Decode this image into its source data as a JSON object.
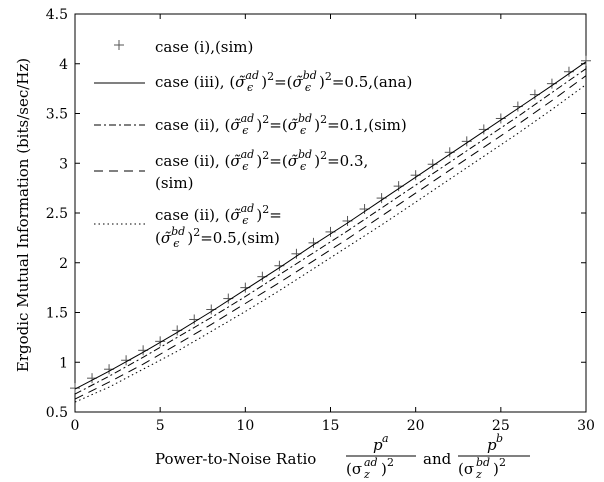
{
  "chart_data": {
    "type": "line",
    "title": "",
    "xlabel": "Power-to-Noise Ratio",
    "xlabel_frac1": {
      "num": "p",
      "num_sup": "a",
      "den": "(σ",
      "den_sub": "z",
      "den_sup": "ad",
      "den_close": ")",
      "den_pow": "2"
    },
    "xlabel_and": "and",
    "xlabel_frac2": {
      "num": "p",
      "num_sup": "b",
      "den": "(σ",
      "den_sub": "z",
      "den_sup": "bd",
      "den_close": ")",
      "den_pow": "2"
    },
    "ylabel": "Ergodic Mutual Information (bits/sec/Hz)",
    "xlim": [
      0,
      30
    ],
    "ylim": [
      0.5,
      4.5
    ],
    "x_ticks": [
      "0",
      "5",
      "10",
      "15",
      "20",
      "25",
      "30"
    ],
    "y_ticks": [
      "0.5",
      "1",
      "1.5",
      "2",
      "2.5",
      "3",
      "3.5",
      "4",
      "4.5"
    ],
    "grid": false,
    "legend_position": "top-left",
    "series": [
      {
        "name": "case (i),(sim)",
        "style": "plus",
        "x": [
          0,
          1,
          2,
          3,
          4,
          5,
          6,
          7,
          8,
          9,
          10,
          11,
          12,
          13,
          14,
          15,
          16,
          17,
          18,
          19,
          20,
          21,
          22,
          23,
          24,
          25,
          26,
          27,
          28,
          29,
          30
        ],
        "values": [
          0.74,
          0.84,
          0.93,
          1.02,
          1.12,
          1.21,
          1.32,
          1.43,
          1.53,
          1.64,
          1.75,
          1.86,
          1.97,
          2.09,
          2.2,
          2.31,
          2.42,
          2.54,
          2.65,
          2.77,
          2.88,
          2.99,
          3.11,
          3.22,
          3.34,
          3.45,
          3.57,
          3.69,
          3.8,
          3.92,
          4.03
        ]
      },
      {
        "name": "case (iii), (σ̃ε^ad)²=(σ̃ε^bd)²=0.5,(ana)",
        "style": "solid",
        "x": [
          0,
          2,
          4,
          6,
          8,
          10,
          12,
          14,
          16,
          18,
          20,
          22,
          24,
          26,
          28,
          30
        ],
        "values": [
          0.73,
          0.91,
          1.1,
          1.3,
          1.51,
          1.73,
          1.95,
          2.18,
          2.4,
          2.63,
          2.86,
          3.09,
          3.32,
          3.55,
          3.78,
          4.02
        ]
      },
      {
        "name": "case (ii), (σ̃ε^ad)²=(σ̃ε^bd)²=0.1,(sim)",
        "style": "dashdot",
        "x": [
          0,
          2,
          4,
          6,
          8,
          10,
          12,
          14,
          16,
          18,
          20,
          22,
          24,
          26,
          28,
          30
        ],
        "values": [
          0.68,
          0.86,
          1.05,
          1.25,
          1.45,
          1.66,
          1.88,
          2.1,
          2.32,
          2.55,
          2.78,
          3.01,
          3.24,
          3.47,
          3.71,
          3.95
        ]
      },
      {
        "name": "case (ii), (σ̃ε^ad)²=(σ̃ε^bd)²=0.3,(sim)",
        "style": "dashed",
        "x": [
          0,
          2,
          4,
          6,
          8,
          10,
          12,
          14,
          16,
          18,
          20,
          22,
          24,
          26,
          28,
          30
        ],
        "values": [
          0.63,
          0.8,
          0.98,
          1.18,
          1.38,
          1.59,
          1.8,
          2.02,
          2.24,
          2.47,
          2.7,
          2.93,
          3.16,
          3.39,
          3.63,
          3.88
        ]
      },
      {
        "name": "case (ii), (σ̃ε^ad)²=(σ̃ε^bd)²=0.5,(sim)",
        "style": "dotted",
        "x": [
          0,
          2,
          4,
          6,
          8,
          10,
          12,
          14,
          16,
          18,
          20,
          22,
          24,
          26,
          28,
          30
        ],
        "values": [
          0.6,
          0.75,
          0.93,
          1.11,
          1.31,
          1.51,
          1.72,
          1.94,
          2.16,
          2.38,
          2.61,
          2.84,
          3.07,
          3.3,
          3.54,
          3.79
        ]
      }
    ],
    "legend": {
      "e1": {
        "text": "case (i),(sim)"
      },
      "e2": {
        "pre": "case (iii), (",
        "sig": "σ̃",
        "sup1": "ad",
        "sub1": "ϵ",
        "mid": ")",
        "pow": "2",
        "eq": "=(",
        "sig2": "σ̃",
        "sup2": "bd",
        "sub2": "ϵ",
        "mid2": ")",
        "pow2": "2",
        "tail": "=0.5,(ana)"
      },
      "e3": {
        "pre": "case (ii), (",
        "sig": "σ̃",
        "sup1": "ad",
        "sub1": "ϵ",
        "mid": ")",
        "pow": "2",
        "eq": "=(",
        "sig2": "σ̃",
        "sup2": "bd",
        "sub2": "ϵ",
        "mid2": ")",
        "pow2": "2",
        "tail": "=0.1,(sim)"
      },
      "e4": {
        "pre": "case (ii), (",
        "sig": "σ̃",
        "sup1": "ad",
        "sub1": "ϵ",
        "mid": ")",
        "pow": "2",
        "eq": "=(",
        "sig2": "σ̃",
        "sup2": "bd",
        "sub2": "ϵ",
        "mid2": ")",
        "pow2": "2",
        "tail": "=0.3,",
        "line2": "(sim)"
      },
      "e5": {
        "pre": "case (ii), (",
        "sig": "σ̃",
        "sup1": "ad",
        "sub1": "ϵ",
        "mid": ")",
        "pow": "2",
        "eq": "=",
        "line2_pre": "(",
        "sig2": "σ̃",
        "sup2": "bd",
        "sub2": "ϵ",
        "mid2": ")",
        "pow2": "2",
        "tail": "=0.5,(sim)"
      }
    }
  }
}
